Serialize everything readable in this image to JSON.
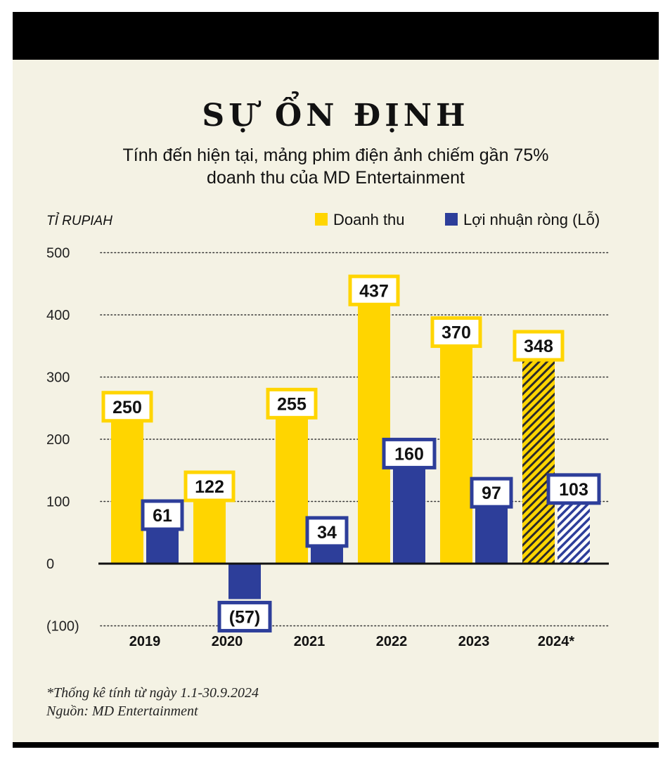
{
  "title": "SỰ ỔN ĐỊNH",
  "subtitle_line1": "Tính đến hiện tại, mảng phim điện ảnh chiếm gần 75%",
  "subtitle_line2": "doanh thu của MD Entertainment",
  "footnote_line1": "*Thống kê tính từ ngày 1.1-30.9.2024",
  "footnote_line2": "Nguồn: MD Entertainment",
  "colors": {
    "revenue": "#ffd500",
    "profit": "#2d3e9a",
    "background": "#f4f2e4"
  },
  "chart_data": {
    "type": "bar",
    "ylabel": "TỈ RUPIAH",
    "ylim": [
      -100,
      500
    ],
    "y_ticks": [
      500,
      400,
      300,
      200,
      100,
      0,
      -100
    ],
    "y_tick_labels": [
      "500",
      "400",
      "300",
      "200",
      "100",
      "0",
      "(100)"
    ],
    "grid": true,
    "legend_position": "top-right",
    "categories": [
      "2019",
      "2020",
      "2021",
      "2022",
      "2023",
      "2024*"
    ],
    "hatched_categories": [
      "2024*"
    ],
    "series": [
      {
        "name": "Doanh thu",
        "values": [
          250,
          122,
          255,
          437,
          370,
          348
        ],
        "labels": [
          "250",
          "122",
          "255",
          "437",
          "370",
          "348"
        ]
      },
      {
        "name": "Lợi nhuận ròng (Lỗ)",
        "values": [
          61,
          -57,
          34,
          160,
          97,
          103
        ],
        "labels": [
          "61",
          "(57)",
          "34",
          "160",
          "97",
          "103"
        ]
      }
    ]
  }
}
